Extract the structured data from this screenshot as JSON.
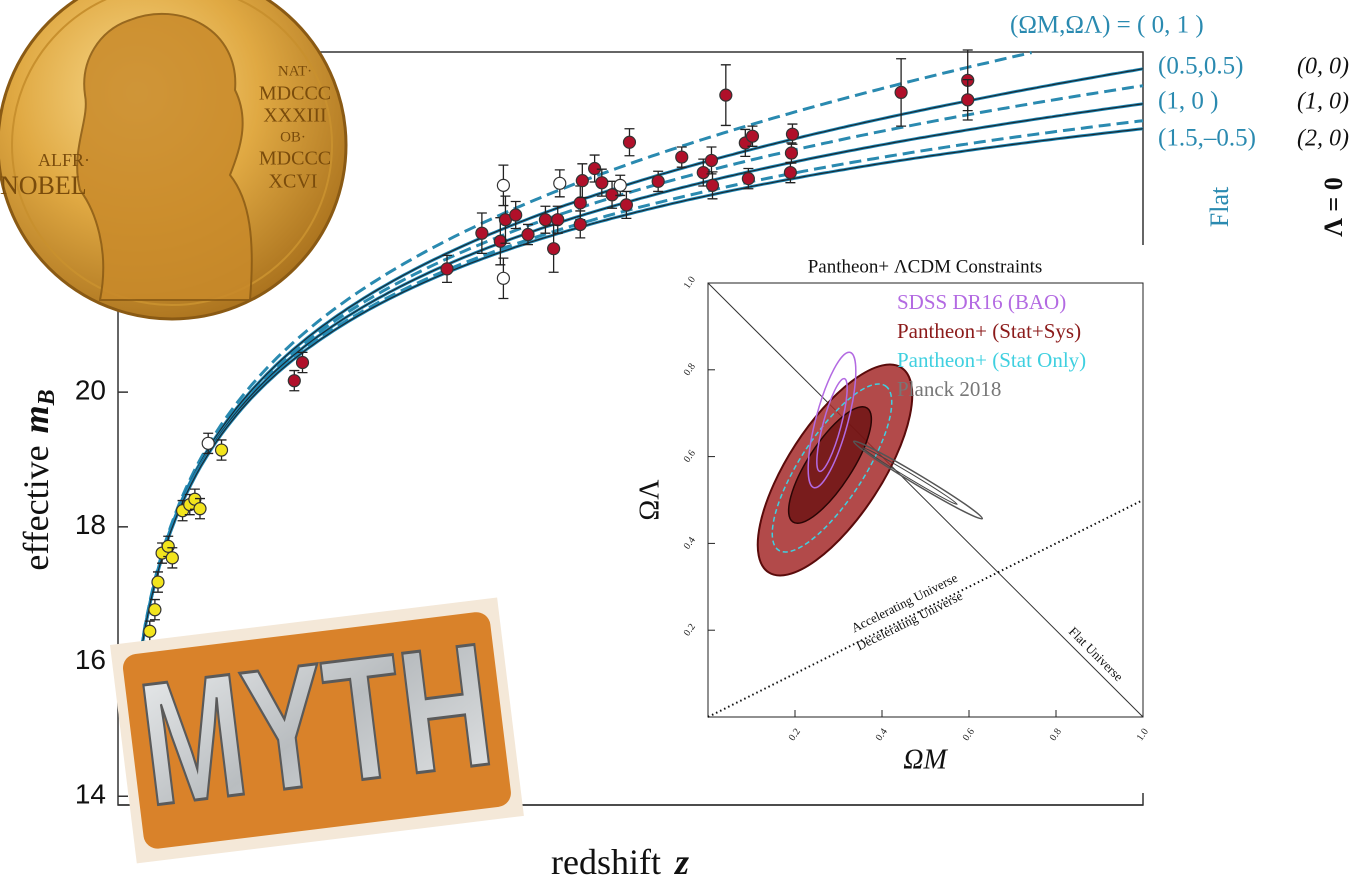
{
  "chart_data": [
    {
      "type": "scatter",
      "xlabel": [
        "redshift",
        "z"
      ],
      "ylabel": [
        "effective",
        "m",
        "B"
      ],
      "xlim": [
        0,
        1
      ],
      "ylim": [
        13.87,
        25.05
      ],
      "yticks": [
        14,
        16,
        18,
        20
      ],
      "series": [
        {
          "color": "#b0102a",
          "x": [
            0.321,
            0.355,
            0.373,
            0.378,
            0.388,
            0.4,
            0.417,
            0.429,
            0.425,
            0.451,
            0.451,
            0.453,
            0.465,
            0.472,
            0.482,
            0.496,
            0.499,
            0.527,
            0.55,
            0.571,
            0.579,
            0.58,
            0.593,
            0.612,
            0.619,
            0.615,
            0.658,
            0.657,
            0.656,
            0.764,
            0.829,
            0.829,
            0.18,
            0.172
          ],
          "values": [
            21.83,
            22.36,
            22.24,
            22.56,
            22.63,
            22.34,
            22.56,
            22.56,
            22.13,
            22.81,
            22.49,
            23.14,
            23.32,
            23.11,
            22.93,
            22.78,
            23.71,
            23.13,
            23.49,
            23.26,
            23.44,
            23.07,
            24.41,
            23.7,
            23.8,
            23.17,
            23.83,
            23.55,
            23.26,
            24.45,
            24.63,
            24.34,
            20.44,
            20.17
          ],
          "errors": [
            0.2,
            0.3,
            0.35,
            0.35,
            0.2,
            0.15,
            0.2,
            0.2,
            0.35,
            0.25,
            0.2,
            0.25,
            0.2,
            0.2,
            0.2,
            0.2,
            0.2,
            0.15,
            0.15,
            0.2,
            0.2,
            0.2,
            0.45,
            0.2,
            0.15,
            0.15,
            0.15,
            0.15,
            0.15,
            0.5,
            0.45,
            0.3,
            0.15,
            0.15
          ]
        },
        {
          "color": "#ffffff",
          "x": [
            0.376,
            0.376,
            0.431,
            0.49,
            0.088
          ],
          "values": [
            23.07,
            21.69,
            23.1,
            23.07,
            19.24
          ],
          "errors": [
            0.3,
            0.3,
            0.2,
            0.15,
            0.15
          ]
        },
        {
          "color": "#f2e41d",
          "x": [
            0.031,
            0.036,
            0.039,
            0.043,
            0.049,
            0.053,
            0.063,
            0.07,
            0.075,
            0.08,
            0.101
          ],
          "values": [
            16.45,
            16.77,
            17.18,
            17.61,
            17.71,
            17.54,
            18.24,
            18.33,
            18.41,
            18.27,
            19.14
          ],
          "errors": [
            0.15,
            0.15,
            0.15,
            0.15,
            0.15,
            0.15,
            0.15,
            0.15,
            0.15,
            0.15,
            0.15
          ]
        }
      ],
      "curve_labels": {
        "header": "(ΩM,ΩΛ) = ( 0,   1 )",
        "flat": [
          "(0.5,0.5)",
          "(1,   0 )",
          "(1.5,–0.5)"
        ],
        "lambda_zero": [
          "(0, 0)",
          "(1, 0)",
          "(2, 0)"
        ],
        "flat_title": "Flat",
        "lambda_zero_title": "Λ = 0"
      }
    },
    {
      "type": "contour",
      "title": "Pantheon+ ΛCDM Constraints",
      "xlabel": "ΩM",
      "ylabel": "ΩΛ",
      "xlim": [
        0,
        1
      ],
      "ylim": [
        0,
        1
      ],
      "xticks": [
        0.2,
        0.4,
        0.6,
        0.8,
        {
          "value": 1,
          "label": "1.0"
        }
      ],
      "yticks": [
        0.2,
        0.4,
        0.6,
        0.8,
        {
          "value": 1,
          "label": "1.0"
        }
      ],
      "series": [
        {
          "name": "SDSS DR16 (BAO)",
          "color": "#b36ae2"
        },
        {
          "name": "Pantheon+ (Stat+Sys)",
          "color": "#8b1a1a"
        },
        {
          "name": "Pantheon+ (Stat Only)",
          "color": "#3fd0e0"
        },
        {
          "name": "Planck 2018",
          "color": "#777777"
        }
      ],
      "annotations": [
        "Accelerating Universe",
        "Decelerating Universe",
        "Flat Universe"
      ]
    }
  ],
  "medal": {
    "left": [
      "ALFR·",
      "NOBEL"
    ],
    "right": [
      "NAT·",
      "MDCCC",
      "XXXIII",
      "OB·",
      "MDCCC",
      "XCVI"
    ]
  },
  "sign": {
    "text": "MYTH"
  }
}
